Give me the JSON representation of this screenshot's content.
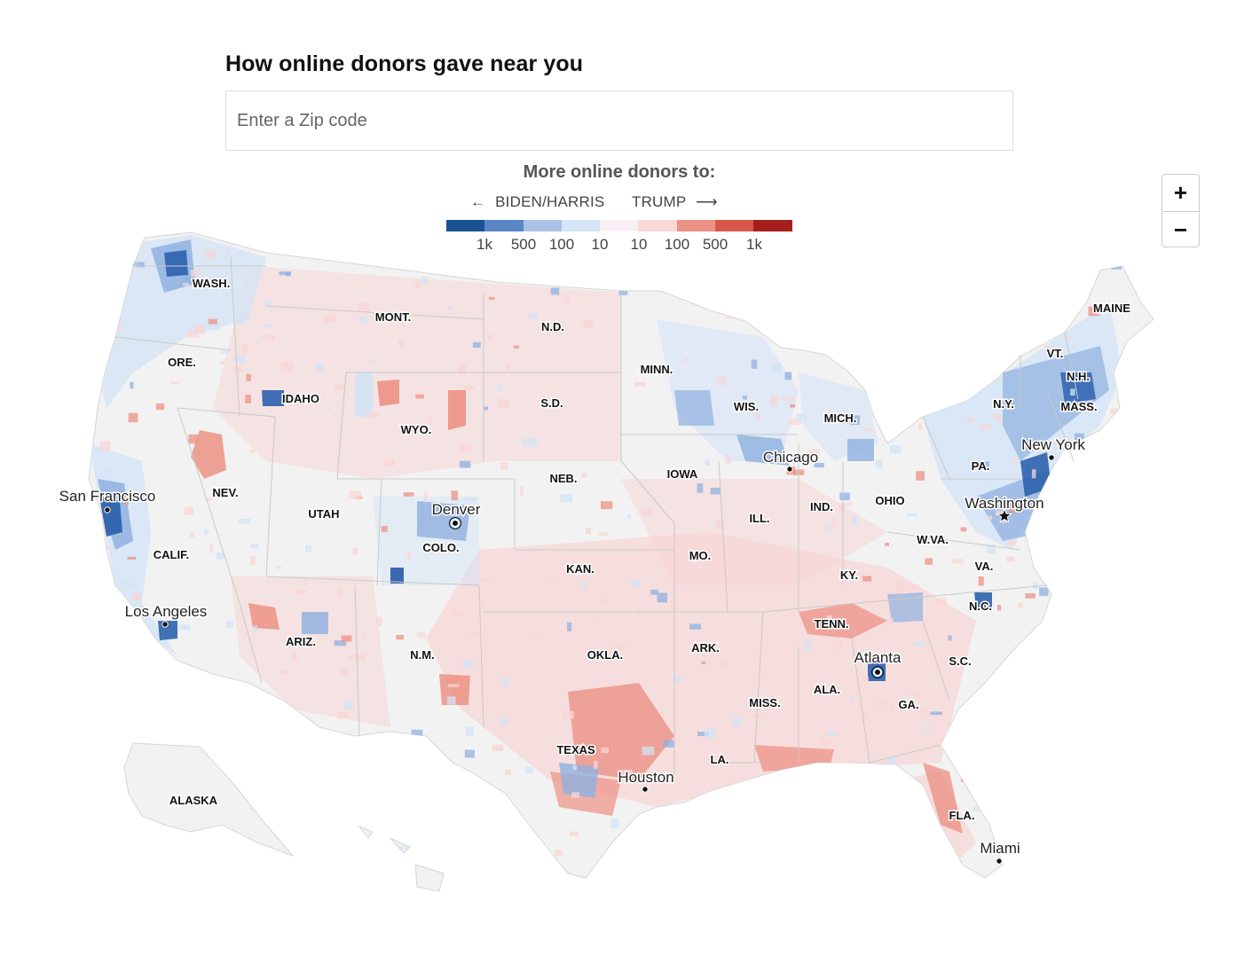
{
  "title": "How online donors gave near you",
  "search": {
    "placeholder": "Enter a Zip code",
    "value": ""
  },
  "legend": {
    "title": "More online donors to:",
    "left_label": "BIDEN/HARRIS",
    "right_label": "TRUMP",
    "left_arrow": "←",
    "right_arrow": "⟶",
    "colors": [
      "#1a5294",
      "#5b86c6",
      "#a9c2e6",
      "#d6e5f7",
      "#f9eef4",
      "#f9d8d8",
      "#ec9284",
      "#d9574a",
      "#a51e1e"
    ],
    "ticks": [
      "1k",
      "500",
      "100",
      "10",
      "10",
      "100",
      "500",
      "1k"
    ]
  },
  "zoom": {
    "in_label": "+",
    "out_label": "−"
  },
  "map": {
    "colors": {
      "land": "#f2f2f2",
      "border": "#c9c9c9",
      "blue_light": "#d3e3f6",
      "blue_mid": "#8fb0e0",
      "blue_dark": "#2e62ad",
      "red_light": "#f8d6d6",
      "red_mid": "#ec9284",
      "red_dark": "#d9574a"
    },
    "states": [
      {
        "abbr": "WASH."
      },
      {
        "abbr": "ORE."
      },
      {
        "abbr": "MONT."
      },
      {
        "abbr": "IDAHO"
      },
      {
        "abbr": "N.D."
      },
      {
        "abbr": "MINN."
      },
      {
        "abbr": "MAINE"
      },
      {
        "abbr": "VT."
      },
      {
        "abbr": "N.H."
      },
      {
        "abbr": "MASS."
      },
      {
        "abbr": "N.Y."
      },
      {
        "abbr": "S.D."
      },
      {
        "abbr": "WYO."
      },
      {
        "abbr": "WIS."
      },
      {
        "abbr": "MICH."
      },
      {
        "abbr": "NEV."
      },
      {
        "abbr": "NEB."
      },
      {
        "abbr": "IOWA"
      },
      {
        "abbr": "PA."
      },
      {
        "abbr": "UTAH"
      },
      {
        "abbr": "ILL."
      },
      {
        "abbr": "IND."
      },
      {
        "abbr": "OHIO"
      },
      {
        "abbr": "COLO."
      },
      {
        "abbr": "W.VA."
      },
      {
        "abbr": "CALIF."
      },
      {
        "abbr": "KAN."
      },
      {
        "abbr": "MO."
      },
      {
        "abbr": "KY."
      },
      {
        "abbr": "VA."
      },
      {
        "abbr": "N.C."
      },
      {
        "abbr": "TENN."
      },
      {
        "abbr": "ARIZ."
      },
      {
        "abbr": "N.M."
      },
      {
        "abbr": "OKLA."
      },
      {
        "abbr": "ARK."
      },
      {
        "abbr": "S.C."
      },
      {
        "abbr": "ALA."
      },
      {
        "abbr": "GA."
      },
      {
        "abbr": "MISS."
      },
      {
        "abbr": "TEXAS"
      },
      {
        "abbr": "LA."
      },
      {
        "abbr": "FLA."
      },
      {
        "abbr": "ALASKA"
      }
    ],
    "cities": [
      {
        "name": "San Francisco",
        "marker": "dot"
      },
      {
        "name": "Denver",
        "marker": "ring"
      },
      {
        "name": "Los Angeles",
        "marker": "dot"
      },
      {
        "name": "Chicago",
        "marker": "dot"
      },
      {
        "name": "New York",
        "marker": "dot"
      },
      {
        "name": "Washington",
        "marker": "star"
      },
      {
        "name": "Atlanta",
        "marker": "ring"
      },
      {
        "name": "Houston",
        "marker": "dot"
      },
      {
        "name": "Miami",
        "marker": "dot"
      }
    ]
  }
}
